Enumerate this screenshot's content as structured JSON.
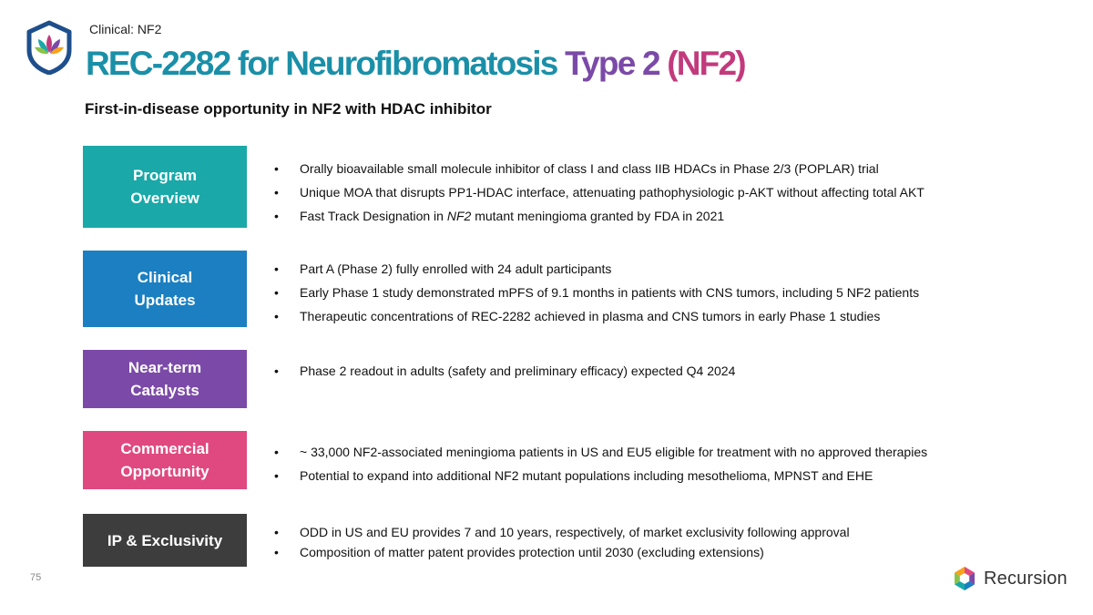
{
  "header": {
    "breadcrumb": "Clinical: NF2",
    "title_part1": "REC-2282 for Neurofibromatosis ",
    "title_part2": "Type 2 ",
    "title_part3": "(NF2)",
    "subtitle": "First-in-disease opportunity in NF2 with HDAC inhibitor"
  },
  "colors": {
    "teal": "#1aa8a8",
    "blue": "#1b7fc1",
    "purple": "#7b4aa8",
    "pink": "#e0497f",
    "dark": "#3d3d3d",
    "title_teal": "#1a8fa8",
    "title_purple": "#7b4aa8",
    "title_pink": "#c23a7c"
  },
  "sections": [
    {
      "label_line1": "Program",
      "label_line2": "Overview",
      "bullets": [
        "Orally bioavailable small molecule inhibitor of class I and class IIB HDACs in Phase 2/3 (POPLAR) trial",
        "Unique MOA that disrupts PP1-HDAC interface, attenuating pathophysiologic p-AKT without affecting total AKT"
      ],
      "bullet3_pre": "Fast Track Designation in ",
      "bullet3_italic": "NF2",
      "bullet3_post": " mutant meningioma granted by FDA in 2021"
    },
    {
      "label_line1": "Clinical",
      "label_line2": "Updates",
      "bullets": [
        "Part A (Phase 2) fully enrolled with 24 adult participants",
        "Early Phase 1 study demonstrated mPFS of 9.1 months in patients with CNS tumors, including 5 NF2 patients",
        "Therapeutic concentrations of REC-2282 achieved in plasma and CNS tumors in early Phase 1 studies"
      ]
    },
    {
      "label_line1": "Near-term",
      "label_line2": "Catalysts",
      "bullets": [
        "Phase 2 readout in adults (safety and preliminary efficacy) expected Q4 2024"
      ]
    },
    {
      "label_line1": "Commercial",
      "label_line2": "Opportunity",
      "bullets": [
        "~ 33,000 NF2-associated meningioma patients in US and EU5 eligible for treatment with no approved therapies",
        "Potential to expand into additional NF2 mutant populations including mesothelioma, MPNST and EHE"
      ]
    },
    {
      "label_line1": "IP & Exclusivity",
      "bullets": [
        "ODD in US and EU provides 7 and 10 years, respectively, of market exclusivity following approval",
        "Composition of matter patent provides protection until 2030 (excluding extensions)"
      ]
    }
  ],
  "footer": {
    "page_number": "75",
    "brand": "Recursion"
  },
  "icons": [
    "shield-leaf-logo-icon",
    "recursion-hexagon-logo-icon"
  ]
}
